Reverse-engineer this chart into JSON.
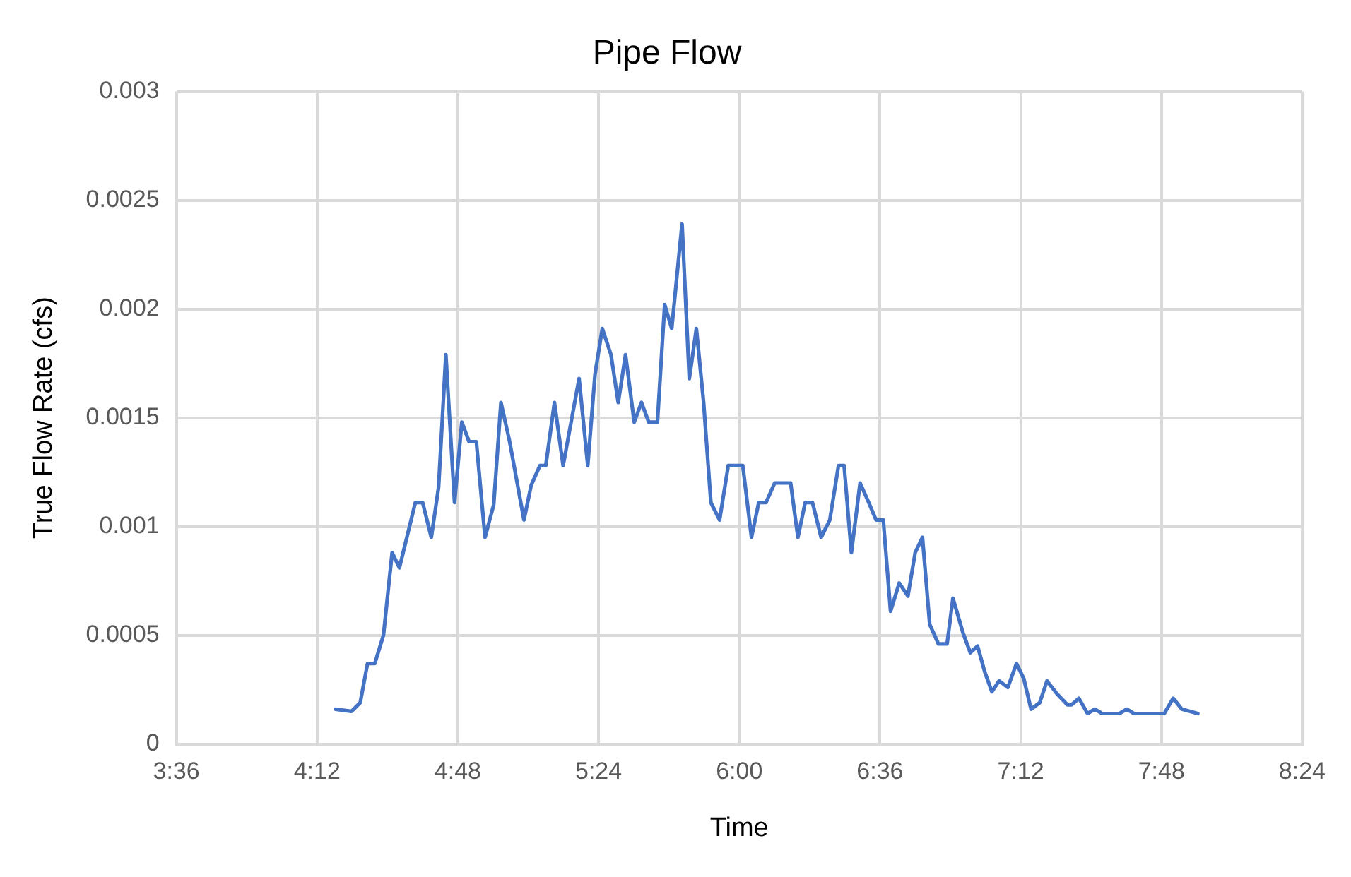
{
  "chart_data": {
    "type": "line",
    "title": "Pipe Flow",
    "xlabel": "Time",
    "ylabel": "True Flow Rate (cfs)",
    "xlim": [
      3.6,
      8.4
    ],
    "xticks": [
      {
        "value": 3.6,
        "label": "3:36"
      },
      {
        "value": 4.2,
        "label": "4:12"
      },
      {
        "value": 4.8,
        "label": "4:48"
      },
      {
        "value": 5.4,
        "label": "5:24"
      },
      {
        "value": 6.0,
        "label": "6:00"
      },
      {
        "value": 6.6,
        "label": "6:36"
      },
      {
        "value": 7.2,
        "label": "7:12"
      },
      {
        "value": 7.8,
        "label": "7:48"
      },
      {
        "value": 8.4,
        "label": "8:24"
      }
    ],
    "ylim": [
      0,
      0.003
    ],
    "yticks": [
      0,
      0.0005,
      0.001,
      0.0015,
      0.002,
      0.0025,
      0.003
    ],
    "grid": true,
    "legend": false,
    "marker": "none",
    "line_style": "solid",
    "series": [
      {
        "color": "#4472c4",
        "x": [
          4.278,
          4.347,
          4.384,
          4.415,
          4.446,
          4.483,
          4.52,
          4.551,
          4.619,
          4.65,
          4.687,
          4.718,
          4.749,
          4.786,
          4.817,
          4.848,
          4.879,
          4.916,
          4.953,
          4.984,
          5.021,
          5.082,
          5.113,
          5.15,
          5.175,
          5.212,
          5.249,
          5.317,
          5.354,
          5.385,
          5.416,
          5.453,
          5.484,
          5.515,
          5.552,
          5.583,
          5.614,
          5.651,
          5.682,
          5.712,
          5.756,
          5.787,
          5.817,
          5.848,
          5.879,
          5.916,
          5.953,
          6.015,
          6.052,
          6.083,
          6.114,
          6.151,
          6.219,
          6.25,
          6.281,
          6.312,
          6.349,
          6.386,
          6.423,
          6.447,
          6.478,
          6.515,
          6.552,
          6.583,
          6.614,
          6.645,
          6.682,
          6.719,
          6.75,
          6.781,
          6.812,
          6.849,
          6.886,
          6.911,
          6.954,
          6.985,
          7.016,
          7.047,
          7.077,
          7.108,
          7.145,
          7.182,
          7.213,
          7.244,
          7.281,
          7.312,
          7.355,
          7.399,
          7.417,
          7.448,
          7.485,
          7.516,
          7.547,
          7.621,
          7.652,
          7.683,
          7.812,
          7.85,
          7.887,
          7.955
        ],
        "values": [
          0.00016,
          0.00015,
          0.00019,
          0.00037,
          0.00037,
          0.0005,
          0.00088,
          0.00081,
          0.00111,
          0.00111,
          0.00095,
          0.00118,
          0.00179,
          0.00111,
          0.00148,
          0.00139,
          0.00139,
          0.00095,
          0.0011,
          0.00157,
          0.00139,
          0.00103,
          0.00119,
          0.00128,
          0.00128,
          0.00157,
          0.00128,
          0.00168,
          0.00128,
          0.0017,
          0.00191,
          0.00179,
          0.00157,
          0.00179,
          0.00148,
          0.00157,
          0.00148,
          0.00148,
          0.00202,
          0.00191,
          0.00239,
          0.00168,
          0.00191,
          0.00157,
          0.00111,
          0.00103,
          0.00128,
          0.00128,
          0.00095,
          0.00111,
          0.00111,
          0.0012,
          0.0012,
          0.00095,
          0.00111,
          0.00111,
          0.00095,
          0.00103,
          0.00128,
          0.00128,
          0.00088,
          0.0012,
          0.00111,
          0.00103,
          0.00103,
          0.00061,
          0.00074,
          0.00068,
          0.00088,
          0.00095,
          0.00055,
          0.00046,
          0.00046,
          0.00067,
          0.00051,
          0.00042,
          0.00045,
          0.00033,
          0.00024,
          0.00029,
          0.00026,
          0.00037,
          0.0003,
          0.00016,
          0.00019,
          0.00029,
          0.00023,
          0.00018,
          0.00018,
          0.00021,
          0.00014,
          0.00016,
          0.00014,
          0.00014,
          0.00016,
          0.00014,
          0.00014,
          0.00021,
          0.00016,
          0.00014
        ]
      }
    ]
  }
}
